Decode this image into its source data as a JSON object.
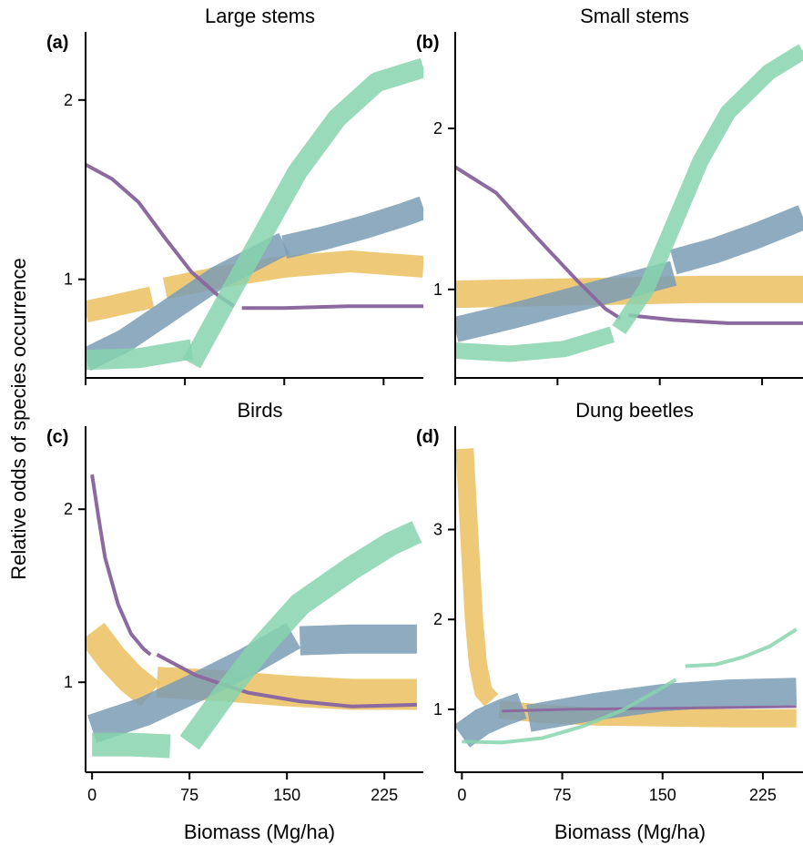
{
  "figure": {
    "ylabel": "Relative odds of species occurrence",
    "xlabel": "Biomass (Mg/ha)"
  },
  "colors": {
    "purple": "#8c6aa0",
    "blue": "#7b9cb5",
    "yellow": "#ebc05f",
    "green": "#86d4ad",
    "axis": "#000000"
  },
  "chart_data": [
    {
      "type": "line",
      "panel": "(a)",
      "title": "Large stems",
      "xlim": [
        0,
        255
      ],
      "ylim": [
        0.45,
        2.38
      ],
      "xticks": [
        0,
        75,
        150,
        225
      ],
      "xtick_labels": [
        "",
        "",
        "",
        ""
      ],
      "yticks": [
        1,
        2
      ],
      "ytick_labels": [
        "1",
        "2"
      ],
      "series": [
        {
          "color": "purple",
          "segments": [
            {
              "x": [
                0,
                20,
                40,
                60,
                80,
                100,
                112
              ],
              "y": [
                1.64,
                1.56,
                1.43,
                1.23,
                1.04,
                0.91,
                0.85
              ]
            },
            {
              "x": [
                118,
                150,
                200,
                255
              ],
              "y": [
                0.84,
                0.84,
                0.85,
                0.85
              ]
            }
          ]
        },
        {
          "color": "blue",
          "segments": [
            {
              "x": [
                0,
                30,
                60,
                100,
                150
              ],
              "y": [
                0.55,
                0.66,
                0.81,
                1.01,
                1.2
              ]
            },
            {
              "x": [
                150,
                180,
                210,
                240,
                255
              ],
              "y": [
                1.18,
                1.23,
                1.29,
                1.36,
                1.4
              ]
            }
          ]
        },
        {
          "color": "yellow",
          "segments": [
            {
              "x": [
                0,
                20,
                50
              ],
              "y": [
                0.82,
                0.85,
                0.9
              ]
            },
            {
              "x": [
                60,
                100,
                150,
                200,
                255
              ],
              "y": [
                0.95,
                1.01,
                1.07,
                1.1,
                1.07
              ]
            }
          ]
        },
        {
          "color": "green",
          "segments": [
            {
              "x": [
                0,
                40,
                80
              ],
              "y": [
                0.55,
                0.56,
                0.61
              ]
            },
            {
              "x": [
                80,
                100,
                130,
                160,
                190,
                220,
                255
              ],
              "y": [
                0.53,
                0.8,
                1.2,
                1.6,
                1.9,
                2.1,
                2.18
              ]
            }
          ]
        }
      ]
    },
    {
      "type": "line",
      "panel": "(b)",
      "title": "Small stems",
      "xlim": [
        0,
        255
      ],
      "ylim": [
        0.45,
        2.6
      ],
      "xticks": [
        0,
        75,
        150,
        225
      ],
      "xtick_labels": [
        "",
        "",
        "",
        ""
      ],
      "yticks": [
        1,
        2
      ],
      "ytick_labels": [
        "1",
        "2"
      ],
      "series": [
        {
          "color": "purple",
          "segments": [
            {
              "x": [
                0,
                30,
                60,
                90,
                110,
                121
              ],
              "y": [
                1.76,
                1.6,
                1.32,
                1.05,
                0.88,
                0.82
              ]
            },
            {
              "x": [
                127,
                160,
                200,
                255
              ],
              "y": [
                0.84,
                0.81,
                0.79,
                0.79
              ]
            }
          ]
        },
        {
          "color": "blue",
          "segments": [
            {
              "x": [
                0,
                40,
                80,
                120,
                160
              ],
              "y": [
                0.75,
                0.83,
                0.92,
                1.01,
                1.1
              ]
            },
            {
              "x": [
                160,
                190,
                220,
                255
              ],
              "y": [
                1.17,
                1.24,
                1.33,
                1.45
              ]
            }
          ]
        },
        {
          "color": "yellow",
          "segments": [
            {
              "x": [
                0,
                60,
                120,
                180,
                255
              ],
              "y": [
                0.97,
                0.98,
                0.99,
                1.0,
                1.0
              ]
            }
          ]
        },
        {
          "color": "green",
          "segments": [
            {
              "x": [
                0,
                40,
                80,
                115
              ],
              "y": [
                0.62,
                0.6,
                0.63,
                0.72
              ]
            },
            {
              "x": [
                120,
                140,
                160,
                180,
                200,
                230,
                255
              ],
              "y": [
                0.75,
                1.0,
                1.4,
                1.8,
                2.1,
                2.35,
                2.48
              ]
            }
          ]
        }
      ]
    },
    {
      "type": "line",
      "panel": "(c)",
      "title": "Birds",
      "xlim": [
        -5,
        255
      ],
      "ylim": [
        0.48,
        2.48
      ],
      "xticks": [
        0,
        75,
        150,
        225
      ],
      "xtick_labels": [
        "0",
        "75",
        "150",
        "225"
      ],
      "yticks": [
        1,
        2
      ],
      "ytick_labels": [
        "1",
        "2"
      ],
      "series": [
        {
          "color": "purple",
          "segments": [
            {
              "x": [
                0,
                5,
                10,
                20,
                30,
                40,
                45
              ],
              "y": [
                2.2,
                1.95,
                1.72,
                1.45,
                1.28,
                1.19,
                1.16
              ]
            },
            {
              "x": [
                50,
                80,
                120,
                160,
                200,
                250
              ],
              "y": [
                1.16,
                1.04,
                0.94,
                0.89,
                0.86,
                0.87
              ]
            }
          ]
        },
        {
          "color": "blue",
          "segments": [
            {
              "x": [
                0,
                40,
                80,
                120,
                155
              ],
              "y": [
                0.73,
                0.83,
                0.97,
                1.12,
                1.27
              ]
            },
            {
              "x": [
                160,
                200,
                250
              ],
              "y": [
                1.24,
                1.25,
                1.25
              ]
            }
          ]
        },
        {
          "color": "yellow",
          "segments": [
            {
              "x": [
                0,
                15,
                30,
                45
              ],
              "y": [
                1.29,
                1.14,
                1.02,
                0.93
              ]
            },
            {
              "x": [
                50,
                100,
                150,
                200,
                250
              ],
              "y": [
                1.0,
                0.98,
                0.95,
                0.93,
                0.93
              ]
            }
          ]
        },
        {
          "color": "green",
          "segments": [
            {
              "x": [
                0,
                30,
                60
              ],
              "y": [
                0.64,
                0.64,
                0.63
              ]
            },
            {
              "x": [
                75,
                100,
                130,
                160,
                200,
                230,
                250
              ],
              "y": [
                0.65,
                0.91,
                1.2,
                1.45,
                1.66,
                1.8,
                1.87
              ]
            }
          ]
        }
      ]
    },
    {
      "type": "line",
      "panel": "(d)",
      "title": "Dung beetles",
      "xlim": [
        -5,
        255
      ],
      "ylim": [
        0.3,
        4.15
      ],
      "xticks": [
        0,
        75,
        150,
        225
      ],
      "xtick_labels": [
        "0",
        "75",
        "150",
        "225"
      ],
      "yticks": [
        1,
        2,
        3
      ],
      "ytick_labels": [
        "1",
        "2",
        "3"
      ],
      "series": [
        {
          "color": "yellow",
          "segments": [
            {
              "x": [
                2,
                6,
                9,
                12,
                16,
                22
              ],
              "y": [
                3.9,
                2.8,
                2.0,
                1.5,
                1.2,
                1.1
              ]
            },
            {
              "x": [
                28,
                60,
                100,
                150,
                200,
                250
              ],
              "y": [
                1.0,
                0.95,
                0.92,
                0.91,
                0.9,
                0.9
              ]
            }
          ]
        },
        {
          "color": "blue",
          "segments": [
            {
              "x": [
                0,
                15,
                30,
                45
              ],
              "y": [
                0.7,
                0.86,
                0.96,
                1.04
              ]
            },
            {
              "x": [
                50,
                100,
                150,
                200,
                250
              ],
              "y": [
                0.9,
                1.03,
                1.13,
                1.18,
                1.2
              ]
            }
          ]
        },
        {
          "color": "purple",
          "segments": [
            {
              "x": [
                30,
                80,
                150,
                200,
                250
              ],
              "y": [
                0.98,
                1.0,
                1.01,
                1.02,
                1.03
              ]
            }
          ]
        },
        {
          "color": "green",
          "segments": [
            {
              "x": [
                0,
                30,
                60,
                90,
                120,
                145,
                160
              ],
              "y": [
                0.64,
                0.63,
                0.68,
                0.81,
                0.99,
                1.2,
                1.33
              ]
            },
            {
              "x": [
                167,
                190,
                210,
                230,
                250
              ],
              "y": [
                1.48,
                1.5,
                1.58,
                1.7,
                1.89
              ]
            }
          ]
        }
      ]
    }
  ]
}
